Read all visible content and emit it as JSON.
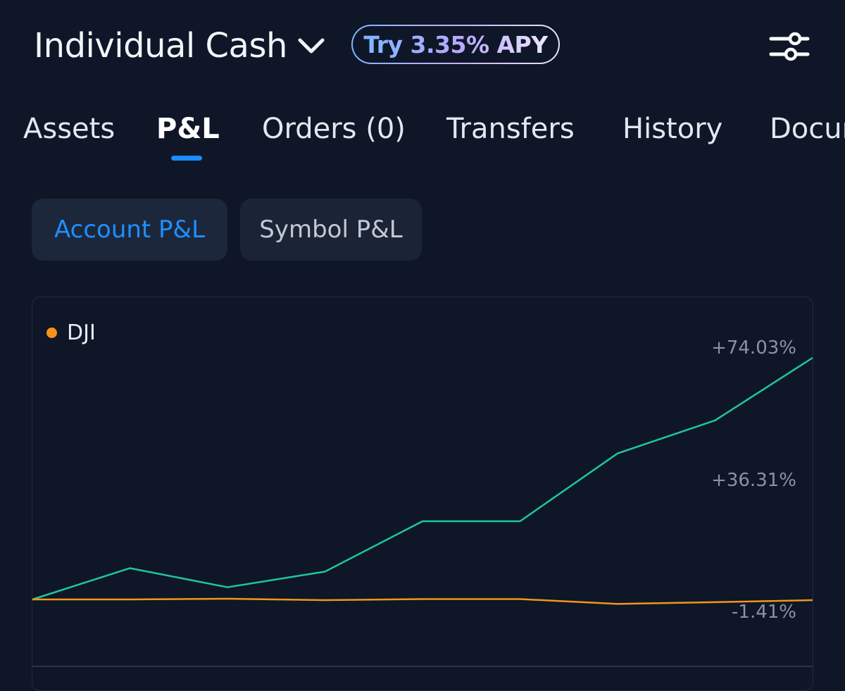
{
  "header": {
    "account_name": "Individual Cash",
    "apy_badge": "Try 3.35% APY"
  },
  "tabs": [
    {
      "label": "Assets",
      "active": false
    },
    {
      "label": "P&L",
      "active": true
    },
    {
      "label": "Orders (0)",
      "active": false
    },
    {
      "label": "Transfers",
      "active": false
    },
    {
      "label": "History",
      "active": false
    },
    {
      "label": "Documents",
      "active": false
    }
  ],
  "segments": {
    "account": {
      "label": "Account P&L",
      "active": true
    },
    "symbol": {
      "label": "Symbol P&L",
      "active": false
    }
  },
  "colors": {
    "accent": "#1a8cff",
    "account_line": "#1fc79a",
    "dji_line": "#f7931a",
    "background": "#0e1628"
  },
  "chart_data": {
    "type": "line",
    "legend": [
      "DJI"
    ],
    "y_tick_labels": [
      "+74.03%",
      "+36.31%",
      "-1.41%"
    ],
    "y_ticks": [
      74.03,
      36.31,
      -1.41
    ],
    "x": [
      0,
      1,
      2,
      3,
      4,
      5,
      6,
      7,
      8
    ],
    "series": [
      {
        "values": [
          0.0,
          9.0,
          3.5,
          8.0,
          22.5,
          22.5,
          42.0,
          51.5,
          69.5
        ]
      },
      {
        "name": "DJI",
        "values": [
          0.0,
          0.0,
          0.2,
          -0.2,
          0.1,
          0.1,
          -1.3,
          -0.8,
          -0.2
        ]
      }
    ]
  }
}
